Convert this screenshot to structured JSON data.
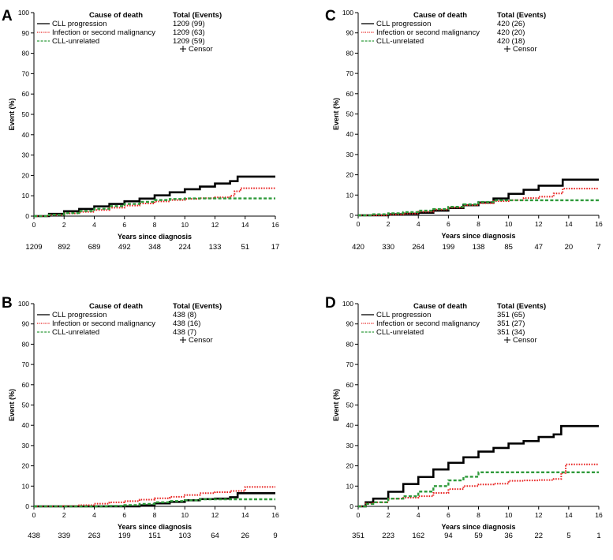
{
  "chart_data": [
    {
      "panel": "A",
      "type": "line",
      "xlabel": "Years since diagnosis",
      "ylabel": "Event (%)",
      "xlim": [
        0,
        16
      ],
      "ylim": [
        0,
        100
      ],
      "xticks": [
        "0",
        "2",
        "4",
        "6",
        "8",
        "10",
        "12",
        "14",
        "16"
      ],
      "yticks": [
        "0",
        "10",
        "20",
        "30",
        "40",
        "50",
        "60",
        "70",
        "80",
        "90",
        "100"
      ],
      "legend": {
        "header_cause": "Cause of death",
        "header_total": "Total (Events)",
        "censor_label": "Censor"
      },
      "series": [
        {
          "name": "CLL progression",
          "total": "1209 (99)",
          "color": "#000000",
          "style": "solid",
          "points": [
            [
              0,
              0
            ],
            [
              1,
              1.1
            ],
            [
              2,
              2.4
            ],
            [
              3,
              3.5
            ],
            [
              4,
              4.8
            ],
            [
              5,
              6.0
            ],
            [
              6,
              7.3
            ],
            [
              7,
              8.6
            ],
            [
              8,
              10.2
            ],
            [
              9,
              11.7
            ],
            [
              10,
              13.2
            ],
            [
              11,
              14.5
            ],
            [
              12,
              16.0
            ],
            [
              13,
              17.2
            ],
            [
              13.5,
              19.4
            ],
            [
              16,
              19.4
            ]
          ]
        },
        {
          "name": "Infection or second malignancy",
          "total": "1209 (63)",
          "color": "#e8201f",
          "style": "dotted",
          "points": [
            [
              0,
              0
            ],
            [
              1,
              0.6
            ],
            [
              2,
              1.3
            ],
            [
              3,
              2.1
            ],
            [
              4,
              3.0
            ],
            [
              5,
              4.1
            ],
            [
              6,
              5.2
            ],
            [
              7,
              6.2
            ],
            [
              8,
              7.2
            ],
            [
              9,
              7.9
            ],
            [
              10,
              8.5
            ],
            [
              11,
              8.8
            ],
            [
              12,
              9.2
            ],
            [
              13,
              10.0
            ],
            [
              13.3,
              12.2
            ],
            [
              13.7,
              13.7
            ],
            [
              16,
              13.7
            ]
          ]
        },
        {
          "name": "CLL-unrelated",
          "total": "1209 (59)",
          "color": "#2e9a3a",
          "style": "dashed",
          "points": [
            [
              0,
              0
            ],
            [
              1,
              0.7
            ],
            [
              2,
              1.5
            ],
            [
              3,
              2.5
            ],
            [
              4,
              3.6
            ],
            [
              5,
              4.9
            ],
            [
              6,
              6.0
            ],
            [
              7,
              7.0
            ],
            [
              8,
              7.9
            ],
            [
              9,
              8.4
            ],
            [
              10,
              8.7
            ],
            [
              11,
              8.7
            ],
            [
              16,
              8.7
            ]
          ]
        }
      ],
      "at_risk": [
        "1209",
        "892",
        "689",
        "492",
        "348",
        "224",
        "133",
        "51",
        "17"
      ]
    },
    {
      "panel": "B",
      "type": "line",
      "xlabel": "Years since diagnosis",
      "ylabel": "Event (%)",
      "xlim": [
        0,
        16
      ],
      "ylim": [
        0,
        100
      ],
      "xticks": [
        "0",
        "2",
        "4",
        "6",
        "8",
        "10",
        "12",
        "14",
        "16"
      ],
      "yticks": [
        "0",
        "10",
        "20",
        "30",
        "40",
        "50",
        "60",
        "70",
        "80",
        "90",
        "100"
      ],
      "legend": {
        "header_cause": "Cause of death",
        "header_total": "Total (Events)",
        "censor_label": "Censor"
      },
      "series": [
        {
          "name": "CLL progression",
          "total": "438 (8)",
          "color": "#000000",
          "style": "solid",
          "points": [
            [
              0,
              0
            ],
            [
              6,
              0
            ],
            [
              7,
              0.5
            ],
            [
              8,
              1.5
            ],
            [
              9,
              2.2
            ],
            [
              10,
              3.0
            ],
            [
              11,
              3.6
            ],
            [
              12,
              3.8
            ],
            [
              13,
              4.5
            ],
            [
              13.5,
              6.5
            ],
            [
              16,
              6.5
            ]
          ]
        },
        {
          "name": "Infection or second malignancy",
          "total": "438 (16)",
          "color": "#e8201f",
          "style": "dotted",
          "points": [
            [
              0,
              0
            ],
            [
              2,
              0.2
            ],
            [
              3,
              0.6
            ],
            [
              4,
              1.3
            ],
            [
              5,
              2.0
            ],
            [
              6,
              2.6
            ],
            [
              7,
              3.3
            ],
            [
              8,
              4.0
            ],
            [
              9,
              4.7
            ],
            [
              10,
              5.6
            ],
            [
              11,
              6.5
            ],
            [
              12,
              7.0
            ],
            [
              13,
              7.6
            ],
            [
              14,
              9.6
            ],
            [
              16,
              9.6
            ]
          ]
        },
        {
          "name": "CLL-unrelated",
          "total": "438 (7)",
          "color": "#2e9a3a",
          "style": "dashed",
          "points": [
            [
              0,
              0
            ],
            [
              4,
              0
            ],
            [
              5,
              0.2
            ],
            [
              6,
              0.6
            ],
            [
              7,
              1.2
            ],
            [
              8,
              2.0
            ],
            [
              9,
              2.6
            ],
            [
              10,
              3.0
            ],
            [
              11,
              3.5
            ],
            [
              16,
              3.5
            ]
          ]
        }
      ],
      "at_risk": [
        "438",
        "339",
        "263",
        "199",
        "151",
        "103",
        "64",
        "26",
        "9"
      ]
    },
    {
      "panel": "C",
      "type": "line",
      "xlabel": "Years since diagnosis",
      "ylabel": "Event (%)",
      "xlim": [
        0,
        16
      ],
      "ylim": [
        0,
        100
      ],
      "xticks": [
        "0",
        "2",
        "4",
        "6",
        "8",
        "10",
        "12",
        "14",
        "16"
      ],
      "yticks": [
        "0",
        "10",
        "20",
        "30",
        "40",
        "50",
        "60",
        "70",
        "80",
        "90",
        "100"
      ],
      "legend": {
        "header_cause": "Cause of death",
        "header_total": "Total (Events)",
        "censor_label": "Censor"
      },
      "series": [
        {
          "name": "CLL progression",
          "total": "420 (26)",
          "color": "#000000",
          "style": "solid",
          "points": [
            [
              0,
              0
            ],
            [
              2,
              0.5
            ],
            [
              3,
              0.8
            ],
            [
              4,
              1.3
            ],
            [
              5,
              2.3
            ],
            [
              6,
              3.6
            ],
            [
              7,
              5.0
            ],
            [
              8,
              6.3
            ],
            [
              9,
              8.3
            ],
            [
              10,
              10.6
            ],
            [
              11,
              12.6
            ],
            [
              12,
              14.6
            ],
            [
              13,
              14.6
            ],
            [
              13.6,
              17.6
            ],
            [
              16,
              17.6
            ]
          ]
        },
        {
          "name": "Infection or second malignancy",
          "total": "420 (20)",
          "color": "#e8201f",
          "style": "dotted",
          "points": [
            [
              0,
              0
            ],
            [
              2,
              0.4
            ],
            [
              3,
              0.9
            ],
            [
              4,
              1.8
            ],
            [
              5,
              2.8
            ],
            [
              6,
              3.8
            ],
            [
              7,
              5.0
            ],
            [
              8,
              6.0
            ],
            [
              9,
              7.0
            ],
            [
              10,
              7.5
            ],
            [
              11,
              8.5
            ],
            [
              12,
              9.2
            ],
            [
              13,
              10.8
            ],
            [
              13.6,
              13.2
            ],
            [
              16,
              13.2
            ]
          ]
        },
        {
          "name": "CLL-unrelated",
          "total": "420 (18)",
          "color": "#2e9a3a",
          "style": "dashed",
          "points": [
            [
              0,
              0
            ],
            [
              1,
              0.5
            ],
            [
              2,
              1.0
            ],
            [
              3,
              1.6
            ],
            [
              4,
              2.3
            ],
            [
              5,
              3.1
            ],
            [
              6,
              4.2
            ],
            [
              7,
              5.4
            ],
            [
              8,
              6.6
            ],
            [
              9,
              7.4
            ],
            [
              10,
              7.4
            ],
            [
              16,
              7.4
            ]
          ]
        }
      ],
      "at_risk": [
        "420",
        "330",
        "264",
        "199",
        "138",
        "85",
        "47",
        "20",
        "7"
      ]
    },
    {
      "panel": "D",
      "type": "line",
      "xlabel": "Years since diagnosis",
      "ylabel": "Event (%)",
      "xlim": [
        0,
        16
      ],
      "ylim": [
        0,
        100
      ],
      "xticks": [
        "0",
        "2",
        "4",
        "6",
        "8",
        "10",
        "12",
        "14",
        "16"
      ],
      "yticks": [
        "0",
        "10",
        "20",
        "30",
        "40",
        "50",
        "60",
        "70",
        "80",
        "90",
        "100"
      ],
      "legend": {
        "header_cause": "Cause of death",
        "header_total": "Total (Events)",
        "censor_label": "Censor"
      },
      "series": [
        {
          "name": "CLL progression",
          "total": "351 (65)",
          "color": "#000000",
          "style": "solid",
          "points": [
            [
              0,
              0
            ],
            [
              0.5,
              2.0
            ],
            [
              1,
              3.8
            ],
            [
              2,
              7.2
            ],
            [
              3,
              11.0
            ],
            [
              4,
              14.5
            ],
            [
              5,
              18.2
            ],
            [
              6,
              21.5
            ],
            [
              7,
              24.2
            ],
            [
              8,
              27.0
            ],
            [
              9,
              28.8
            ],
            [
              10,
              31.0
            ],
            [
              11,
              32.2
            ],
            [
              12,
              34.2
            ],
            [
              13,
              35.5
            ],
            [
              13.5,
              39.6
            ],
            [
              16,
              39.6
            ]
          ]
        },
        {
          "name": "Infection or second malignancy",
          "total": "351 (27)",
          "color": "#e8201f",
          "style": "dotted",
          "points": [
            [
              0,
              0
            ],
            [
              0.5,
              1.4
            ],
            [
              1,
              2.0
            ],
            [
              2,
              3.8
            ],
            [
              3,
              4.3
            ],
            [
              4,
              5.0
            ],
            [
              5,
              6.6
            ],
            [
              6,
              8.5
            ],
            [
              7,
              10.0
            ],
            [
              8,
              10.8
            ],
            [
              9,
              11.2
            ],
            [
              10,
              12.6
            ],
            [
              11,
              12.8
            ],
            [
              12,
              13.0
            ],
            [
              13,
              13.5
            ],
            [
              13.5,
              16.5
            ],
            [
              13.8,
              20.7
            ],
            [
              16,
              20.7
            ]
          ]
        },
        {
          "name": "CLL-unrelated",
          "total": "351 (34)",
          "color": "#2e9a3a",
          "style": "dashed",
          "points": [
            [
              0,
              0
            ],
            [
              0.5,
              1.2
            ],
            [
              1,
              2.0
            ],
            [
              2,
              3.8
            ],
            [
              3,
              5.0
            ],
            [
              4,
              7.3
            ],
            [
              5,
              10.0
            ],
            [
              6,
              12.8
            ],
            [
              7,
              14.6
            ],
            [
              8,
              16.8
            ],
            [
              9,
              16.8
            ],
            [
              16,
              16.8
            ]
          ]
        }
      ],
      "at_risk": [
        "351",
        "223",
        "162",
        "94",
        "59",
        "36",
        "22",
        "5",
        "1"
      ]
    }
  ]
}
